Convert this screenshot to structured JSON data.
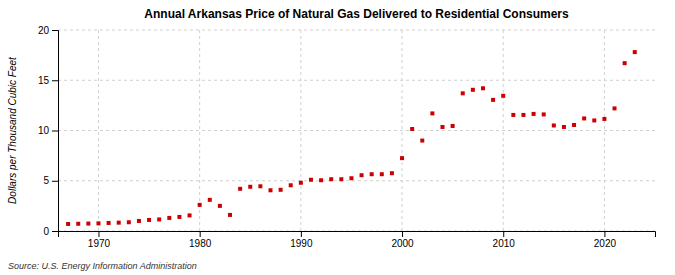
{
  "chart_data": {
    "type": "scatter",
    "title": "Annual Arkansas Price of Natural Gas Delivered to Residential Consumers",
    "y_label": "Dollars per Thousand Cubic Feet",
    "source": "Source: U.S. Energy Information Administration",
    "color": "#cc0000",
    "marker": "square",
    "grid": true,
    "xlim": [
      1966,
      2025
    ],
    "xticks": [
      1970,
      1980,
      1990,
      2000,
      2010,
      2020
    ],
    "ylim": [
      0,
      20
    ],
    "yticks": [
      0,
      5,
      10,
      15,
      20
    ],
    "x": [
      1967,
      1968,
      1969,
      1970,
      1971,
      1972,
      1973,
      1974,
      1975,
      1976,
      1977,
      1978,
      1979,
      1980,
      1981,
      1982,
      1983,
      1984,
      1985,
      1986,
      1987,
      1988,
      1989,
      1990,
      1991,
      1992,
      1993,
      1994,
      1995,
      1996,
      1997,
      1998,
      1999,
      2000,
      2001,
      2002,
      2003,
      2004,
      2005,
      2006,
      2007,
      2008,
      2009,
      2010,
      2011,
      2012,
      2013,
      2014,
      2015,
      2016,
      2017,
      2018,
      2019,
      2020,
      2021,
      2022,
      2023
    ],
    "values": [
      0.7,
      0.72,
      0.74,
      0.76,
      0.8,
      0.83,
      0.87,
      1.0,
      1.1,
      1.15,
      1.3,
      1.4,
      1.55,
      2.6,
      3.1,
      2.5,
      1.6,
      4.2,
      4.4,
      4.45,
      4.05,
      4.1,
      4.55,
      4.8,
      5.1,
      5.05,
      5.15,
      5.15,
      5.25,
      5.55,
      5.65,
      5.65,
      5.75,
      7.25,
      10.15,
      9.0,
      11.7,
      10.35,
      10.45,
      13.7,
      14.05,
      14.2,
      13.05,
      13.45,
      11.55,
      11.55,
      11.65,
      11.6,
      10.5,
      10.35,
      10.55,
      11.2,
      11.0,
      11.15,
      12.2,
      16.7,
      17.8
    ]
  }
}
